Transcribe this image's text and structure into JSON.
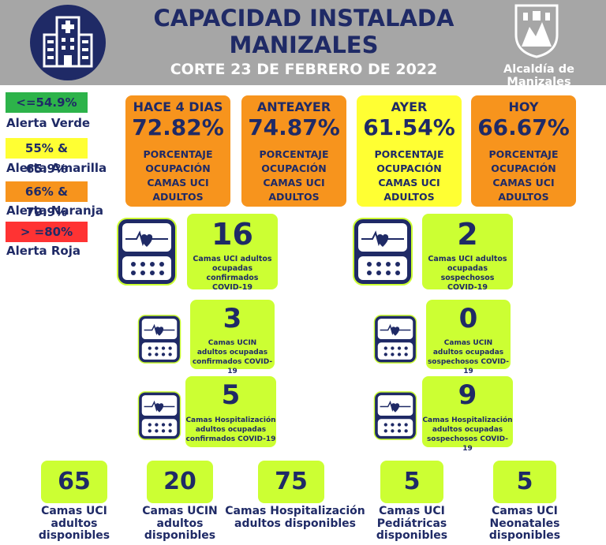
{
  "header": {
    "title_line1": "CAPACIDAD INSTALADA",
    "title_line2": "MANIZALES",
    "subtitle": "CORTE 23 DE FEBRERO DE 2022",
    "org": "Alcaldía de Manizales"
  },
  "legend": [
    {
      "range": "<=54.9%",
      "label": "Alerta Verde",
      "color": "#2db34a"
    },
    {
      "range": "55% & 65.9%",
      "label": "Alerta Amarilla",
      "color": "#ffff33"
    },
    {
      "range": "66% & 79.9%",
      "label": "Alerta Naranja",
      "color": "#f7941d"
    },
    {
      "range": "> =80%",
      "label": "Alerta Roja",
      "color": "#ff3333"
    }
  ],
  "occupancy": [
    {
      "period": "HACE 4 DIAS",
      "value": "72.82%",
      "desc1": "PORCENTAJE",
      "desc2": "OCUPACIÓN",
      "desc3": "CAMAS UCI",
      "desc4": "ADULTOS",
      "color": "#f7941d"
    },
    {
      "period": "ANTEAYER",
      "value": "74.87%",
      "desc1": "PORCENTAJE",
      "desc2": "OCUPACIÓN",
      "desc3": "CAMAS UCI",
      "desc4": "ADULTOS",
      "color": "#f7941d"
    },
    {
      "period": "AYER",
      "value": "61.54%",
      "desc1": "PORCENTAJE",
      "desc2": "OCUPACIÓN",
      "desc3": "CAMAS UCI",
      "desc4": "ADULTOS",
      "color": "#ffff33"
    },
    {
      "period": "HOY",
      "value": "66.67%",
      "desc1": "PORCENTAJE",
      "desc2": "OCUPACIÓN",
      "desc3": "CAMAS UCI",
      "desc4": "ADULTOS",
      "color": "#f7941d"
    }
  ],
  "occupied": {
    "uci_confirmed": {
      "value": "16",
      "l1": "Camas UCI adultos",
      "l2": "ocupadas confirmados",
      "l3": "COVID-19"
    },
    "uci_suspected": {
      "value": "2",
      "l1": "Camas UCI adultos",
      "l2": "ocupadas sospechosos",
      "l3": "COVID-19"
    },
    "ucin_confirmed": {
      "value": "3",
      "l1": "Camas  UCIN",
      "l2": "adultos ocupadas",
      "l3": "confirmados COVID-19"
    },
    "ucin_suspected": {
      "value": "0",
      "l1": "Camas  UCIN",
      "l2": "adultos ocupadas",
      "l3": "sospechosos COVID-19"
    },
    "hosp_confirmed": {
      "value": "5",
      "l1": "Camas  Hospitalización",
      "l2": "adultos ocupadas",
      "l3": "confirmados COVID-19"
    },
    "hosp_suspected": {
      "value": "9",
      "l1": "Camas  Hospitalización",
      "l2": "adultos ocupadas",
      "l3": "sospechosos COVID-19"
    }
  },
  "available": [
    {
      "value": "65",
      "l1": "Camas UCI",
      "l2": "adultos",
      "l3": "disponibles"
    },
    {
      "value": "20",
      "l1": "Camas UCIN",
      "l2": "adultos",
      "l3": "disponibles"
    },
    {
      "value": "75",
      "l1": "Camas  Hospitalización",
      "l2": "adultos disponibles",
      "l3": ""
    },
    {
      "value": "5",
      "l1": "Camas  UCI",
      "l2": "Pediátricas",
      "l3": "disponibles"
    },
    {
      "value": "5",
      "l1": "Camas  UCI",
      "l2": "Neonatales",
      "l3": "disponibles"
    }
  ]
}
